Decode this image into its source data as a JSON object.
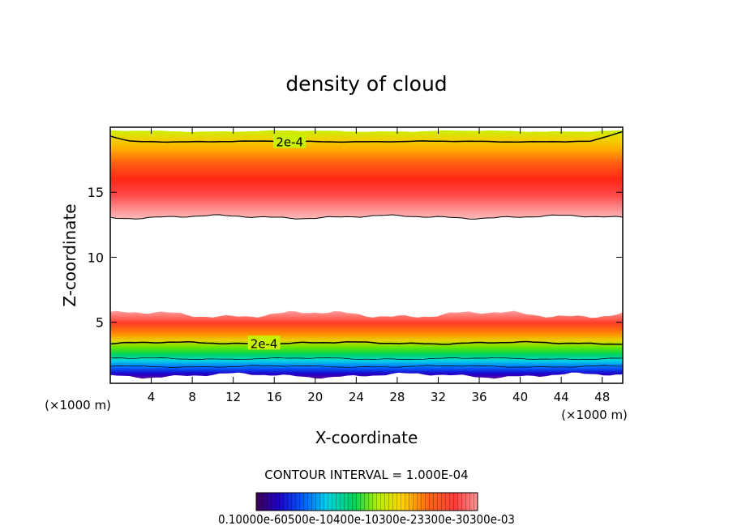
{
  "chart_data": {
    "type": "heatmap",
    "title": "density of cloud",
    "xlabel": "X-coordinate",
    "ylabel": "Z-coordinate",
    "x_unit_left": "(×1000 m)",
    "x_unit_right": "(×1000 m)",
    "xlim": [
      0,
      50
    ],
    "ylim": [
      0.3,
      20
    ],
    "x_ticks": [
      4,
      8,
      12,
      16,
      20,
      24,
      28,
      32,
      36,
      40,
      44,
      48
    ],
    "y_ticks": [
      5,
      10,
      15
    ],
    "contour_interval_text": "CONTOUR INTERVAL = 1.000E-04",
    "contour_label_upper": "2e-4",
    "contour_label_lower": "2e-4",
    "colorbar_labels_text": "0.10000e-60500e-10400e-10300e-23300e-30300e-03",
    "upper_layer": {
      "z_base": 13.1,
      "z_top": 19.7,
      "z_peak": 15.0,
      "peak_value": 0.0003,
      "contour_2e4_z": 18.9
    },
    "lower_layer": {
      "z_base": 0.9,
      "z_top": 5.6,
      "z_peak": 4.6,
      "contour_2e4_z": 3.4
    },
    "colormap": [
      "#4a007a",
      "#1e00c8",
      "#0064ff",
      "#00d2e6",
      "#00d25a",
      "#64e600",
      "#c8f000",
      "#ffaa00",
      "#ff3c14",
      "#ff9696"
    ]
  }
}
